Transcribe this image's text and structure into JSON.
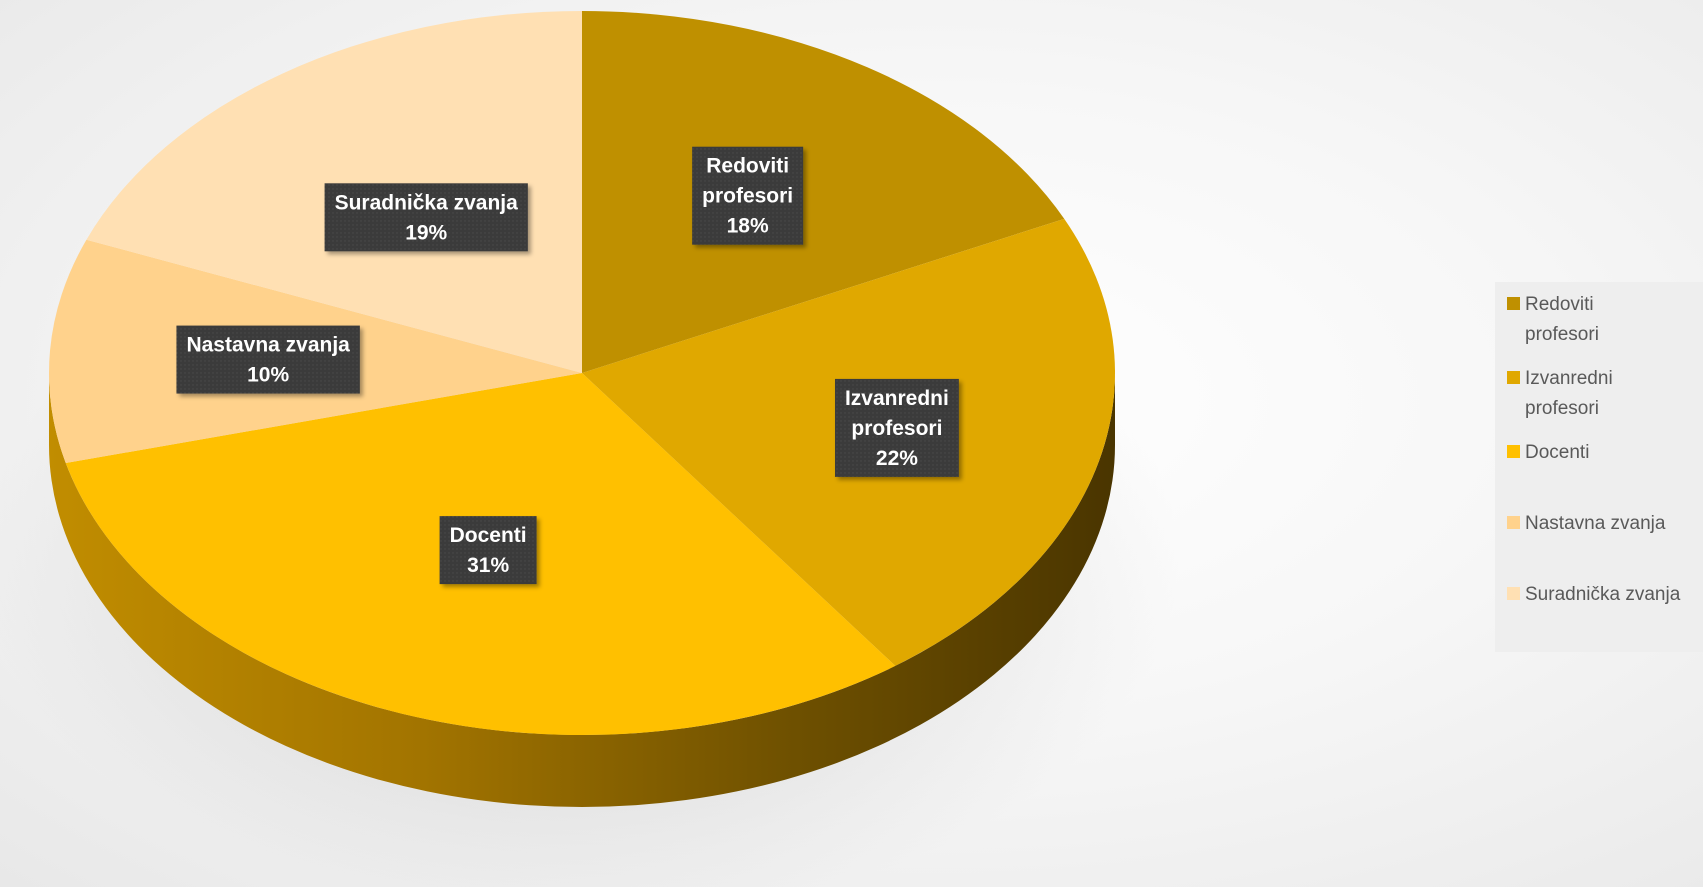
{
  "chart_data": {
    "type": "pie",
    "style": "3d",
    "categories": [
      "Redoviti profesori",
      "Izvanredni profesori",
      "Docenti",
      "Nastavna zvanja",
      "Suradnička zvanja"
    ],
    "values": [
      18,
      22,
      31,
      10,
      19
    ],
    "unit": "%",
    "data_labels": [
      {
        "lines": [
          "Redoviti",
          "profesori",
          "18%"
        ]
      },
      {
        "lines": [
          "Izvanredni",
          "profesori",
          "22%"
        ]
      },
      {
        "lines": [
          "Docenti",
          "31%"
        ]
      },
      {
        "lines": [
          "Nastavna zvanja",
          "10%"
        ]
      },
      {
        "lines": [
          "Suradnička zvanja",
          "19%"
        ]
      }
    ],
    "colors": [
      "#bf9000",
      "#e0a800",
      "#ffc000",
      "#ffd28c",
      "#ffe0b3"
    ],
    "legend": {
      "placement": "right",
      "entries": [
        "Redoviti\nprofesori",
        "Izvanredni\nprofesori",
        "Docenti",
        "Nastavna zvanja",
        "Suradnička zvanja"
      ]
    }
  }
}
